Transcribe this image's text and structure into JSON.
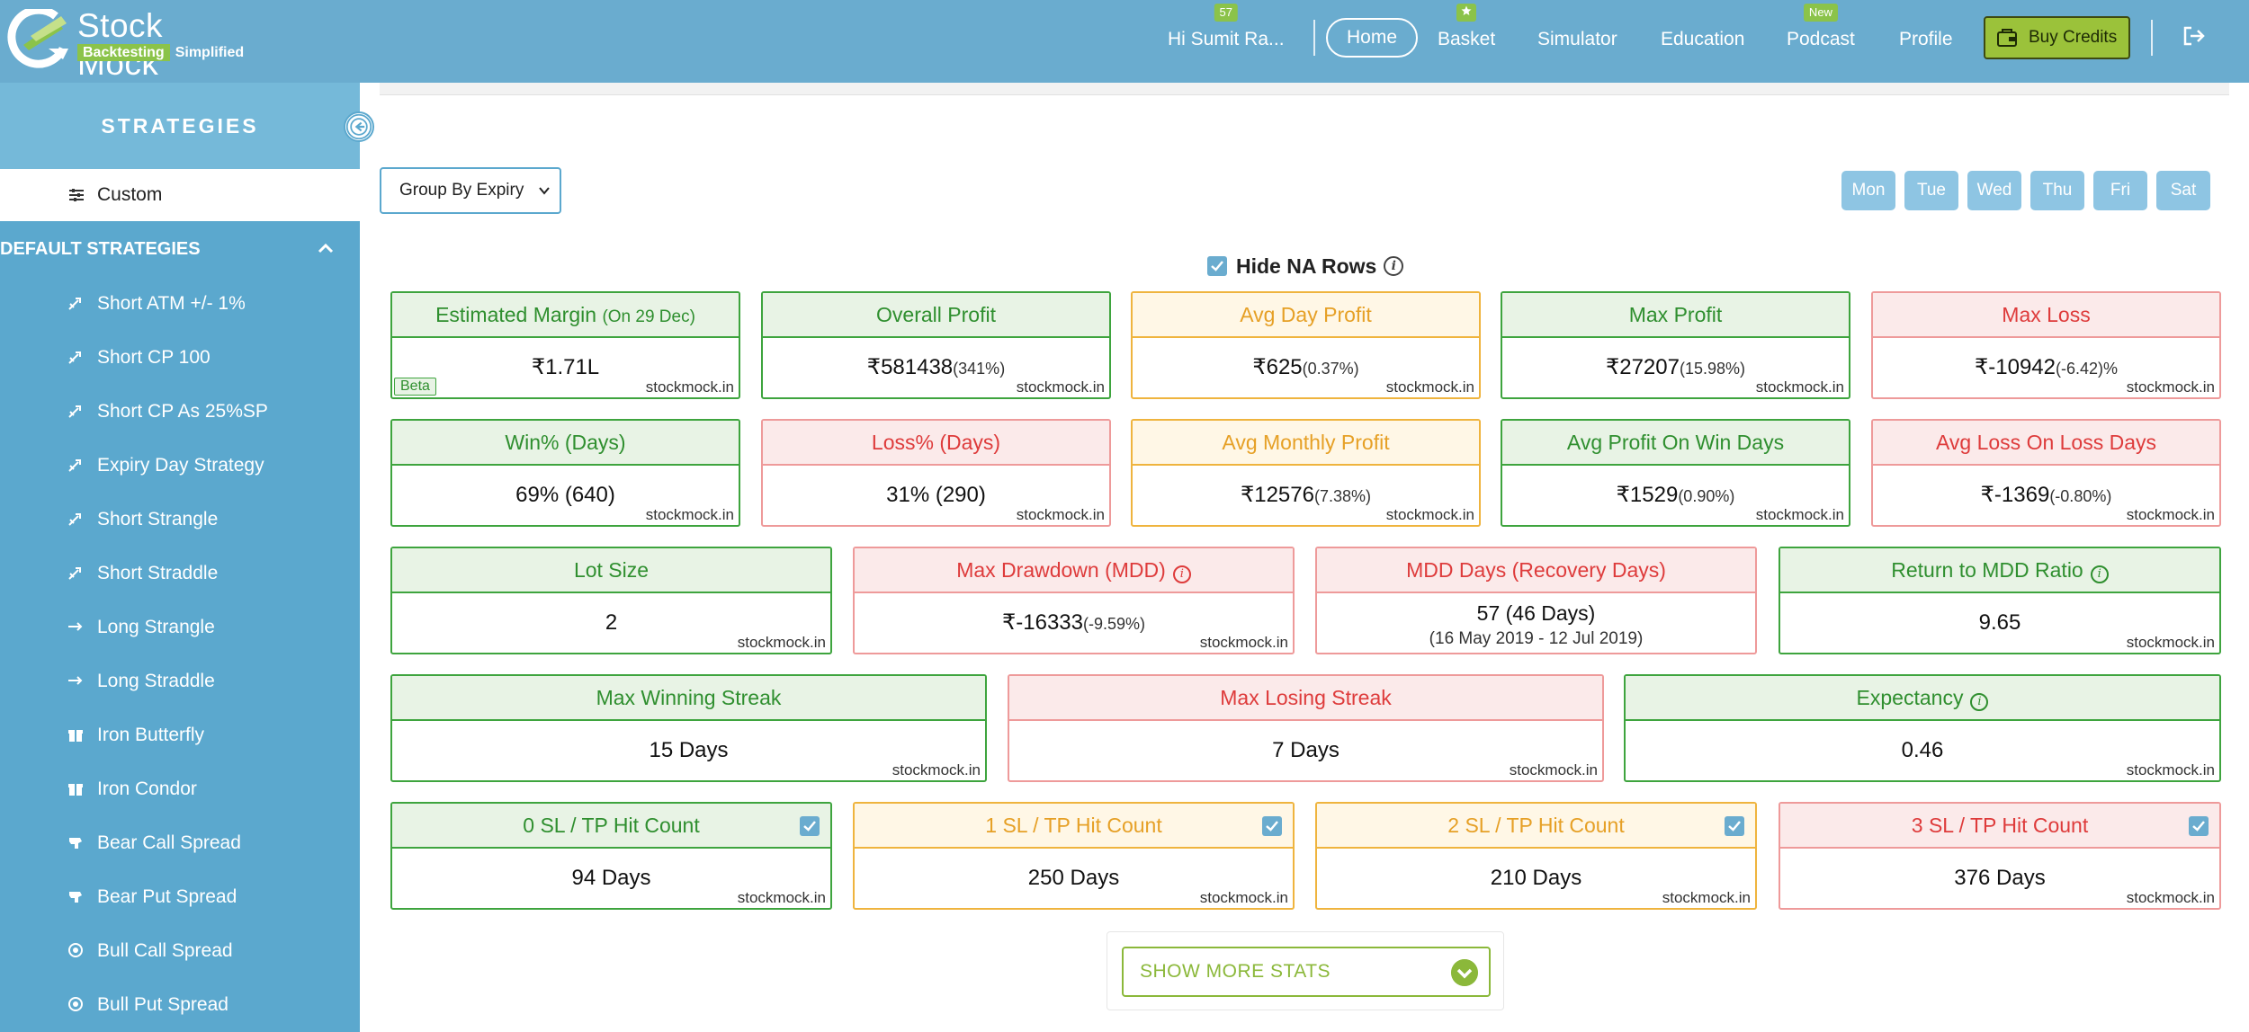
{
  "header": {
    "logo_title": "Stock Mock",
    "logo_tag_highlight": "Backtesting",
    "logo_tag_rest": "Simplified",
    "greeting": "Hi Sumit Ra...",
    "greeting_badge": "57",
    "nav": {
      "home": "Home",
      "basket": "Basket",
      "simulator": "Simulator",
      "education": "Education",
      "podcast": "Podcast",
      "podcast_badge": "New",
      "profile": "Profile"
    },
    "buy_credits": "Buy Credits"
  },
  "sidebar": {
    "title": "STRATEGIES",
    "custom": "Custom",
    "section_title": "DEFAULT STRATEGIES",
    "items": [
      {
        "label": "Short ATM +/- 1%",
        "icon": "short-icon"
      },
      {
        "label": "Short CP 100",
        "icon": "short-icon"
      },
      {
        "label": "Short CP As 25%SP",
        "icon": "short-icon"
      },
      {
        "label": "Expiry Day Strategy",
        "icon": "short-icon"
      },
      {
        "label": "Short Strangle",
        "icon": "short-icon"
      },
      {
        "label": "Short Straddle",
        "icon": "short-icon"
      },
      {
        "label": "Long Strangle",
        "icon": "arrow-right-icon"
      },
      {
        "label": "Long Straddle",
        "icon": "arrow-right-icon"
      },
      {
        "label": "Iron Butterfly",
        "icon": "gift-icon"
      },
      {
        "label": "Iron Condor",
        "icon": "gift-icon"
      },
      {
        "label": "Bear Call Spread",
        "icon": "bear-icon"
      },
      {
        "label": "Bear Put Spread",
        "icon": "bear-icon"
      },
      {
        "label": "Bull Call Spread",
        "icon": "bull-icon"
      },
      {
        "label": "Bull Put Spread",
        "icon": "bull-icon"
      }
    ]
  },
  "controls": {
    "group_by": "Group By Expiry",
    "days": [
      "Mon",
      "Tue",
      "Wed",
      "Thu",
      "Fri",
      "Sat"
    ],
    "hide_na_rows": "Hide NA Rows",
    "hide_na_checked": true
  },
  "watermark": "stockmock.in",
  "stats": {
    "estimated_margin": {
      "title": "Estimated Margin",
      "note": "(On 29 Dec)",
      "value": "₹1.71L",
      "badge": "Beta"
    },
    "overall_profit": {
      "title": "Overall Profit",
      "value": "₹581438",
      "sub": "(341%)"
    },
    "avg_day_profit": {
      "title": "Avg Day Profit",
      "value": "₹625",
      "sub": "(0.37%)"
    },
    "max_profit": {
      "title": "Max Profit",
      "value": "₹27207",
      "sub": "(15.98%)"
    },
    "max_loss": {
      "title": "Max Loss",
      "value": "₹-10942",
      "sub": "(-6.42)%"
    },
    "win_pct": {
      "title": "Win% (Days)",
      "value": "69% (640)"
    },
    "loss_pct": {
      "title": "Loss% (Days)",
      "value": "31% (290)"
    },
    "avg_monthly_profit": {
      "title": "Avg Monthly Profit",
      "value": "₹12576",
      "sub": "(7.38%)"
    },
    "avg_profit_win_days": {
      "title": "Avg Profit On Win Days",
      "value": "₹1529",
      "sub": "(0.90%)"
    },
    "avg_loss_loss_days": {
      "title": "Avg Loss On Loss Days",
      "value": "₹-1369",
      "sub": "(-0.80%)"
    },
    "lot_size": {
      "title": "Lot Size",
      "value": "2"
    },
    "max_drawdown": {
      "title": "Max Drawdown (MDD)",
      "value": "₹-16333",
      "sub": "(-9.59%)"
    },
    "mdd_days": {
      "title": "MDD Days (Recovery Days)",
      "value": "57 (46 Days)",
      "range": "(16 May 2019 - 12 Jul 2019)"
    },
    "return_mdd": {
      "title": "Return to MDD Ratio",
      "value": "9.65"
    },
    "max_win_streak": {
      "title": "Max Winning Streak",
      "value": "15 Days"
    },
    "max_loss_streak": {
      "title": "Max Losing Streak",
      "value": "7 Days"
    },
    "expectancy": {
      "title": "Expectancy",
      "value": "0.46"
    },
    "sl0": {
      "title": "0 SL / TP Hit Count",
      "value": "94 Days",
      "checked": true
    },
    "sl1": {
      "title": "1 SL / TP Hit Count",
      "value": "250 Days",
      "checked": true
    },
    "sl2": {
      "title": "2 SL / TP Hit Count",
      "value": "210 Days",
      "checked": true
    },
    "sl3": {
      "title": "3 SL / TP Hit Count",
      "value": "376 Days",
      "checked": true
    }
  },
  "show_more": "SHOW MORE STATS",
  "colors": {
    "header_bg": "#6aaccf",
    "sidebar_bg": "#5ba8ce",
    "green": "#3ea43e",
    "red": "#de3b3b",
    "yellow": "#e6a026",
    "accent_green": "#8bc34a"
  }
}
